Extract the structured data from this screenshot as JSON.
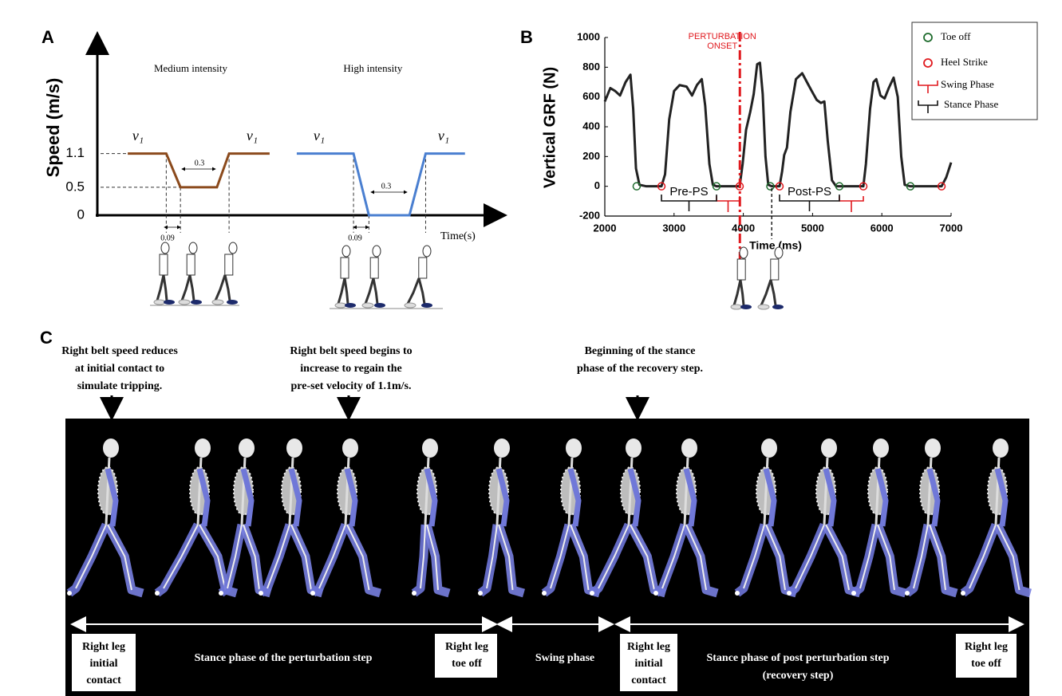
{
  "chart_data": [
    {
      "type": "line",
      "label": "A",
      "y_label": "Speed (m/s)",
      "x_label": "Time(s)",
      "xlim": [
        0,
        10
      ],
      "ylim": [
        0,
        3.2
      ],
      "yticks": [
        0,
        0.5,
        1.1
      ],
      "series": [
        {
          "name": "Medium intensity",
          "color": "#8b4a1c",
          "x": [
            0.75,
            1.7,
            2.05,
            2.95,
            3.25,
            4.25
          ],
          "values": [
            1.1,
            1.1,
            0.5,
            0.5,
            1.1,
            1.1
          ]
        },
        {
          "name": "High intensity",
          "color": "#4a7fd0",
          "x": [
            4.92,
            6.32,
            6.7,
            7.7,
            8.1,
            9.07
          ],
          "values": [
            1.1,
            1.1,
            0,
            0,
            1.1,
            1.1
          ]
        }
      ],
      "annotations": [
        "v₁",
        "v₁",
        "v₁",
        "v₁",
        "0.3",
        "0.3",
        "0.09",
        "0.09"
      ]
    },
    {
      "type": "line",
      "label": "B",
      "y_label": "Vertical GRF (N)",
      "x_label": "Time (ms)",
      "xlim": [
        2000,
        7000
      ],
      "ylim": [
        -200,
        1000
      ],
      "xticks": [
        2000,
        3000,
        4000,
        5000,
        6000,
        7000
      ],
      "yticks": [
        -200,
        0,
        200,
        400,
        600,
        800,
        1000
      ],
      "x": [
        2000,
        2080,
        2150,
        2220,
        2300,
        2370,
        2410,
        2450,
        2500,
        2600,
        2818,
        2870,
        2930,
        3000,
        3080,
        3180,
        3260,
        3330,
        3400,
        3450,
        3510,
        3560,
        3613,
        3947,
        3990,
        4040,
        4100,
        4150,
        4200,
        4240,
        4280,
        4320,
        4360,
        4410,
        4523,
        4560,
        4590,
        4630,
        4680,
        4760,
        4850,
        4930,
        5000,
        5060,
        5120,
        5170,
        5220,
        5280,
        5340,
        5733,
        5770,
        5830,
        5880,
        5920,
        5980,
        6040,
        6100,
        6170,
        6230,
        6280,
        6330,
        6412,
        6862,
        6930,
        7000
      ],
      "series": [
        {
          "color": "#222222",
          "values": [
            570,
            660,
            640,
            610,
            700,
            750,
            520,
            120,
            10,
            0,
            0,
            80,
            450,
            640,
            680,
            670,
            610,
            680,
            720,
            540,
            150,
            10,
            0,
            0,
            150,
            380,
            500,
            620,
            820,
            830,
            620,
            200,
            10,
            0,
            0,
            100,
            210,
            260,
            500,
            720,
            760,
            690,
            630,
            580,
            560,
            570,
            300,
            40,
            0,
            0,
            150,
            520,
            700,
            720,
            610,
            590,
            660,
            730,
            600,
            200,
            10,
            0,
            0,
            60,
            160
          ]
        }
      ],
      "events": [
        {
          "name": "Toe off",
          "color": "#1d6b2c",
          "x": [
            2460,
            3613,
            4390,
            5387,
            6412
          ],
          "values": [
            0,
            0,
            0,
            0,
            0
          ]
        },
        {
          "name": "Heel Strike",
          "color": "#e0191e",
          "x": [
            2818,
            3947,
            4523,
            5733,
            6862
          ],
          "values": [
            0,
            0,
            0,
            0,
            0
          ]
        }
      ],
      "phases": [
        {
          "name": "Swing Phase",
          "color": "#e0191e",
          "spans": [
            [
              3613,
              3947
            ],
            [
              5387,
              5733
            ]
          ]
        },
        {
          "name": "Stance Phase",
          "color": "#111111",
          "spans": [
            [
              2818,
              3613
            ],
            [
              4523,
              5387
            ]
          ],
          "labels": [
            "Pre-PS",
            "Post-PS"
          ]
        }
      ],
      "perturbation_onset": {
        "label": [
          "PERTURBATION",
          "ONSET"
        ],
        "x": 3950,
        "color": "#e0191e"
      },
      "dashed_line_x": 4410,
      "legend": "upper right"
    }
  ],
  "panel_c": {
    "label": "C",
    "notes": [
      [
        "Right belt speed reduces",
        "at initial contact to",
        "simulate tripping."
      ],
      [
        "Right belt speed begins to",
        "increase to regain the",
        "pre-set velocity of 1.1m/s."
      ],
      [
        "Beginning of the stance",
        "phase of the recovery step."
      ]
    ],
    "phase_labels": [
      [
        "Right leg",
        "initial",
        "contact"
      ],
      [
        "Stance phase of the perturbation step"
      ],
      [
        "Right leg",
        "toe off"
      ],
      [
        "Swing phase"
      ],
      [
        "Right leg",
        "initial",
        "contact"
      ],
      [
        "Stance phase of post perturbation step",
        "(recovery step)"
      ],
      [
        "Right leg",
        "toe off"
      ]
    ]
  }
}
